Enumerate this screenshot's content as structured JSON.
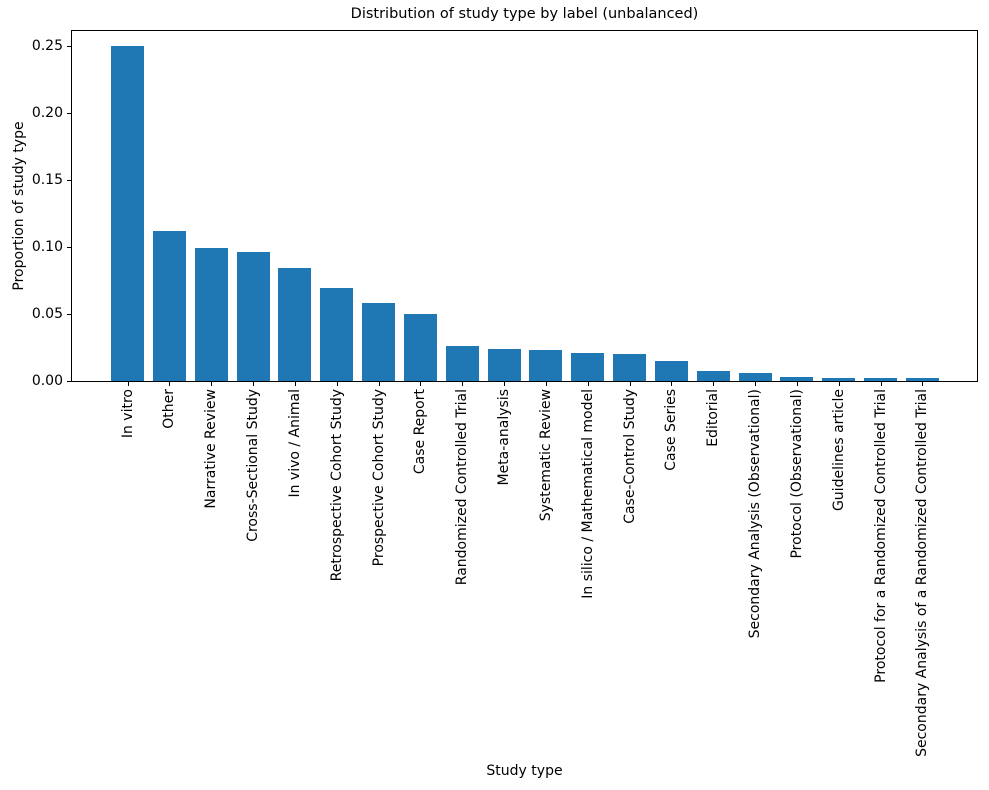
{
  "chart_data": {
    "type": "bar",
    "title": "Distribution of study type by label (unbalanced)",
    "xlabel": "Study type",
    "ylabel": "Proportion of study type",
    "categories": [
      "In vitro",
      "Other",
      "Narrative Review",
      "Cross-Sectional Study",
      "In vivo / Animal",
      "Retrospective Cohort Study",
      "Prospective Cohort Study",
      "Case Report",
      "Randomized Controlled Trial",
      "Meta-analysis",
      "Systematic Review",
      "In silico / Mathematical model",
      "Case-Control Study",
      "Case Series",
      "Editorial",
      "Secondary Analysis (Observational)",
      "Protocol (Observational)",
      "Guidelines article",
      "Protocol for a Randomized Controlled Trial",
      "Secondary Analysis of a Randomized Controlled Trial"
    ],
    "values": [
      0.251,
      0.113,
      0.1,
      0.097,
      0.085,
      0.07,
      0.059,
      0.051,
      0.027,
      0.0245,
      0.0242,
      0.022,
      0.021,
      0.0155,
      0.0085,
      0.007,
      0.004,
      0.003,
      0.003,
      0.003
    ],
    "yticks": [
      0,
      0.05,
      0.1,
      0.15,
      0.2,
      0.25
    ],
    "ytick_labels": [
      "0.00",
      "0.05",
      "0.10",
      "0.15",
      "0.20",
      "0.25"
    ],
    "ylim": [
      0,
      0.263
    ],
    "x_tick_rotation": 90,
    "grid": false,
    "bar_color": "#1f77b4",
    "axis_color": "#000000",
    "background_color": "#ffffff"
  }
}
